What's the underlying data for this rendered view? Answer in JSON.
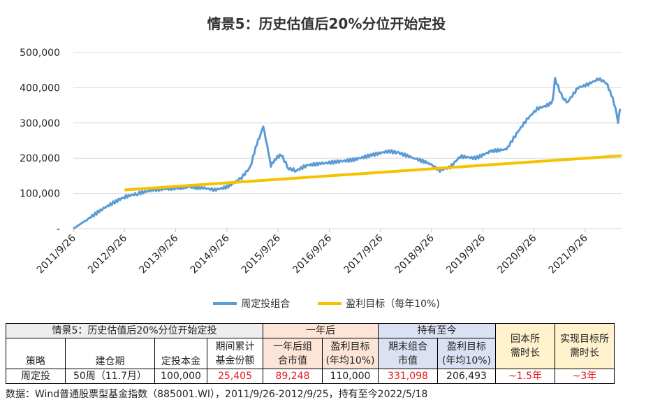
{
  "chart_data": {
    "type": "line",
    "title": "情景5：历史估值后20%分位开始定投",
    "y_ticks": [
      "500,000",
      "400,000",
      "300,000",
      "200,000",
      "100,000",
      "-"
    ],
    "ylim": [
      0,
      500000
    ],
    "x_ticks": [
      "2011/9/26",
      "2012/9/26",
      "2013/9/26",
      "2014/9/26",
      "2015/9/26",
      "2016/9/26",
      "2017/9/26",
      "2018/9/26",
      "2019/9/26",
      "2020/9/26",
      "2021/9/26"
    ],
    "grid": true,
    "legend_position": "bottom",
    "series": [
      {
        "name": "周定投组合",
        "color": "#5b9bd5",
        "points": [
          [
            2011.74,
            0
          ],
          [
            2012.0,
            25000
          ],
          [
            2012.3,
            55000
          ],
          [
            2012.6,
            80000
          ],
          [
            2012.74,
            90000
          ],
          [
            2013.0,
            100000
          ],
          [
            2013.3,
            110000
          ],
          [
            2013.74,
            115000
          ],
          [
            2014.0,
            118000
          ],
          [
            2014.3,
            115000
          ],
          [
            2014.5,
            110000
          ],
          [
            2014.74,
            118000
          ],
          [
            2015.0,
            140000
          ],
          [
            2015.2,
            175000
          ],
          [
            2015.3,
            230000
          ],
          [
            2015.4,
            270000
          ],
          [
            2015.45,
            292000
          ],
          [
            2015.5,
            255000
          ],
          [
            2015.6,
            180000
          ],
          [
            2015.7,
            200000
          ],
          [
            2015.8,
            210000
          ],
          [
            2015.95,
            170000
          ],
          [
            2016.1,
            165000
          ],
          [
            2016.3,
            180000
          ],
          [
            2016.6,
            185000
          ],
          [
            2016.9,
            190000
          ],
          [
            2017.2,
            195000
          ],
          [
            2017.6,
            210000
          ],
          [
            2017.9,
            220000
          ],
          [
            2018.1,
            215000
          ],
          [
            2018.4,
            200000
          ],
          [
            2018.7,
            185000
          ],
          [
            2018.9,
            165000
          ],
          [
            2019.1,
            175000
          ],
          [
            2019.3,
            205000
          ],
          [
            2019.6,
            200000
          ],
          [
            2019.9,
            220000
          ],
          [
            2020.2,
            225000
          ],
          [
            2020.4,
            270000
          ],
          [
            2020.6,
            310000
          ],
          [
            2020.8,
            340000
          ],
          [
            2021.0,
            350000
          ],
          [
            2021.1,
            360000
          ],
          [
            2021.15,
            425000
          ],
          [
            2021.3,
            370000
          ],
          [
            2021.4,
            360000
          ],
          [
            2021.6,
            400000
          ],
          [
            2021.8,
            410000
          ],
          [
            2022.0,
            425000
          ],
          [
            2022.15,
            415000
          ],
          [
            2022.25,
            380000
          ],
          [
            2022.33,
            345000
          ],
          [
            2022.38,
            300000
          ],
          [
            2022.42,
            340000
          ]
        ]
      },
      {
        "name": "盈利目标（每年10%)",
        "color": "#f5c200",
        "points": [
          [
            2012.74,
            110000
          ],
          [
            2022.45,
            207000
          ]
        ]
      }
    ]
  },
  "table": {
    "r1": {
      "title": "情景5：历史估值后20%分位开始定投",
      "one_year_after": "一年后",
      "hold_until_now": "持有至今",
      "payback_time": "回本所\n需时长",
      "target_time": "实现目标所\n需时长"
    },
    "r2": {
      "cum_shares": "期间累计\n基金份额",
      "mv_after_one_year": "一年后组\n合市值",
      "profit_target_1": "盈利目标\n(年均10%)",
      "final_mv": "期末组合\n市值",
      "profit_target_2": "盈利目标\n(年均10%)"
    },
    "r3": {
      "strategy": "策略",
      "build_period": "建仓期",
      "principal": "定投本金"
    },
    "r4": {
      "strategy": "周定投",
      "build_period": "50周（11.7月）",
      "principal": "100,000",
      "cum_shares": "25,405",
      "mv_after_one_year": "89,248",
      "profit_target_1": "110,000",
      "final_mv": "331,098",
      "profit_target_2": "206,493",
      "payback_time": "~1.5年",
      "target_time": "~3年"
    }
  },
  "source": "数据：Wind普通股票型基金指数（885001.WI），2011/9/26-2012/9/25，持有至今2022/5/18"
}
